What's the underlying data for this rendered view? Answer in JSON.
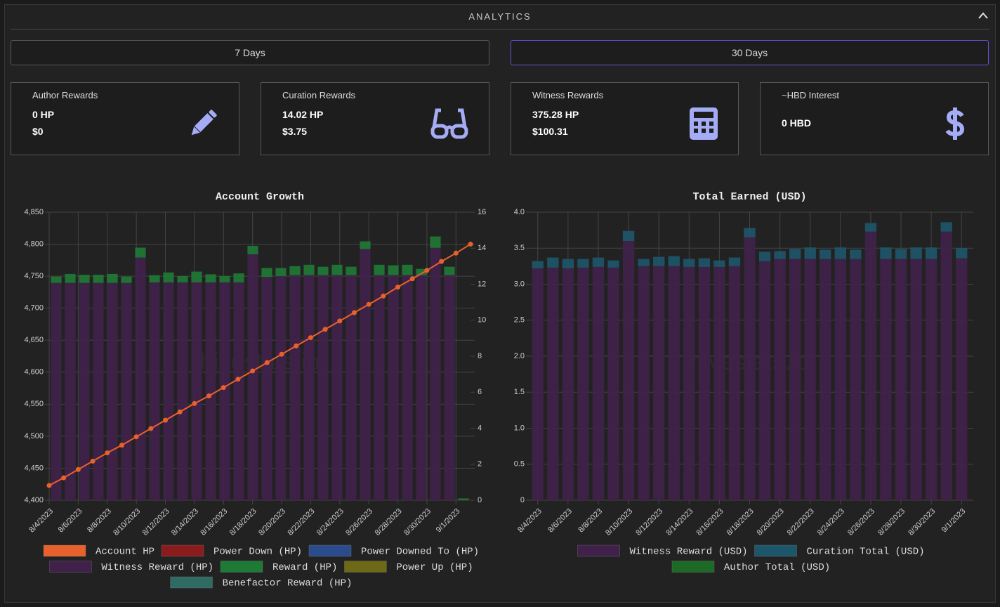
{
  "header": {
    "title": "ANALYTICS"
  },
  "tabs": [
    "7 Days",
    "30 Days"
  ],
  "cards": [
    {
      "title": "Author Rewards",
      "lines": [
        "0 HP",
        "$0"
      ]
    },
    {
      "title": "Curation Rewards",
      "lines": [
        "14.02 HP",
        "$3.75"
      ]
    },
    {
      "title": "Witness Rewards",
      "lines": [
        "375.28 HP",
        "$100.31"
      ]
    },
    {
      "title": "~HBD Interest",
      "lines": [
        "0 HBD"
      ]
    }
  ],
  "watermark": "hivestats.io",
  "chart_data": [
    {
      "type": "bar",
      "title": "Account Growth",
      "categories": [
        "8/4/2023",
        null,
        "8/6/2023",
        null,
        "8/8/2023",
        null,
        "8/10/2023",
        null,
        "8/12/2023",
        null,
        "8/14/2023",
        null,
        "8/16/2023",
        null,
        "8/18/2023",
        null,
        "8/20/2023",
        null,
        "8/22/2023",
        null,
        "8/24/2023",
        null,
        "8/26/2023",
        null,
        "8/28/2023",
        null,
        "8/30/2023",
        null,
        "9/1/2023",
        null
      ],
      "ylim": [
        4400,
        4850
      ],
      "yticks": [
        {
          "value": 4400,
          "label": "4,400"
        },
        {
          "value": 4450,
          "label": "4,450"
        },
        {
          "value": 4500,
          "label": "4,500"
        },
        {
          "value": 4550,
          "label": "4,550"
        },
        {
          "value": 4600,
          "label": "4,600"
        },
        {
          "value": 4650,
          "label": "4,650"
        },
        {
          "value": 4700,
          "label": "4,700"
        },
        {
          "value": 4750,
          "label": "4,750"
        },
        {
          "value": 4800,
          "label": "4,800"
        },
        {
          "value": 4850,
          "label": "4,850"
        }
      ],
      "y2lim": [
        0,
        16
      ],
      "y2ticks": [
        0,
        2,
        4,
        6,
        8,
        10,
        12,
        14,
        16
      ],
      "grid": true,
      "series": [
        {
          "name": "Account HP",
          "type": "line",
          "color": "#e8612c",
          "values": [
            4423,
            4435,
            4448,
            4461,
            4474,
            4486,
            4499,
            4512,
            4525,
            4538,
            4551,
            4563,
            4576,
            4589,
            4602,
            4615,
            4628,
            4641,
            4654,
            4667,
            4680,
            4693,
            4706,
            4719,
            4733,
            4746,
            4759,
            4773,
            4786,
            4800
          ]
        },
        {
          "name": "Power Down (HP)",
          "axis": "y2",
          "color": "#8a1c1c",
          "values": [
            0,
            0,
            0,
            0,
            0,
            0,
            0,
            0,
            0,
            0,
            0,
            0,
            0,
            0,
            0,
            0,
            0,
            0,
            0,
            0,
            0,
            0,
            0,
            0,
            0,
            0,
            0,
            0,
            0,
            0
          ]
        },
        {
          "name": "Power Downed To (HP)",
          "axis": "y2",
          "color": "#2b4c8c",
          "values": [
            0,
            0,
            0,
            0,
            0,
            0,
            0,
            0,
            0,
            0,
            0,
            0,
            0,
            0,
            0,
            0,
            0,
            0,
            0,
            0,
            0,
            0,
            0,
            0,
            0,
            0,
            0,
            0,
            0,
            0
          ]
        },
        {
          "name": "Witness Reward (HP)",
          "axis": "y2",
          "color": "#41214a",
          "values": [
            12.07,
            12.07,
            12.07,
            12.07,
            12.07,
            12.07,
            13.48,
            12.1,
            12.1,
            12.1,
            12.1,
            12.1,
            12.1,
            12.1,
            13.66,
            12.4,
            12.45,
            12.5,
            12.5,
            12.5,
            12.5,
            12.5,
            13.95,
            12.5,
            12.5,
            12.5,
            12.5,
            14.02,
            12.5,
            0
          ]
        },
        {
          "name": "Reward (HP)",
          "axis": "y2",
          "color": "#1f7a36",
          "values": [
            0.35,
            0.5,
            0.45,
            0.45,
            0.5,
            0.35,
            0.55,
            0.4,
            0.55,
            0.35,
            0.6,
            0.45,
            0.35,
            0.5,
            0.47,
            0.5,
            0.45,
            0.5,
            0.58,
            0.47,
            0.58,
            0.47,
            0.43,
            0.58,
            0.55,
            0.58,
            0.35,
            0.63,
            0.47,
            0.1
          ]
        },
        {
          "name": "Power Up (HP)",
          "axis": "y2",
          "color": "#6d6916",
          "values": [
            0,
            0,
            0,
            0,
            0,
            0,
            0,
            0,
            0,
            0,
            0,
            0,
            0,
            0,
            0,
            0,
            0,
            0,
            0,
            0,
            0,
            0,
            0,
            0,
            0,
            0,
            0,
            0,
            0,
            0
          ]
        },
        {
          "name": "Benefactor Reward (HP)",
          "axis": "y2",
          "color": "#2f6b62",
          "values": [
            0,
            0,
            0,
            0,
            0,
            0,
            0,
            0,
            0,
            0,
            0,
            0,
            0,
            0,
            0,
            0,
            0,
            0,
            0,
            0,
            0,
            0,
            0,
            0,
            0,
            0,
            0,
            0,
            0,
            0
          ]
        }
      ]
    },
    {
      "type": "bar",
      "title": "Total Earned (USD)",
      "categories": [
        "8/4/2023",
        null,
        "8/6/2023",
        null,
        "8/8/2023",
        null,
        "8/10/2023",
        null,
        "8/12/2023",
        null,
        "8/14/2023",
        null,
        "8/16/2023",
        null,
        "8/18/2023",
        null,
        "8/20/2023",
        null,
        "8/22/2023",
        null,
        "8/24/2023",
        null,
        "8/26/2023",
        null,
        "8/28/2023",
        null,
        "8/30/2023",
        null,
        "9/1/2023"
      ],
      "ylim": [
        0,
        4
      ],
      "yticks": [
        0,
        0.5,
        {
          "value": 1,
          "label": "1.0"
        },
        1.5,
        {
          "value": 2,
          "label": "2.0"
        },
        2.5,
        {
          "value": 3,
          "label": "3.0"
        },
        3.5,
        {
          "value": 4,
          "label": "4.0"
        }
      ],
      "grid": true,
      "series": [
        {
          "name": "Witness Reward (USD)",
          "color": "#41214a",
          "values": [
            3.22,
            3.23,
            3.22,
            3.23,
            3.24,
            3.23,
            3.6,
            3.25,
            3.25,
            3.25,
            3.24,
            3.24,
            3.24,
            3.25,
            3.65,
            3.32,
            3.35,
            3.35,
            3.35,
            3.35,
            3.35,
            3.35,
            3.73,
            3.35,
            3.35,
            3.35,
            3.35,
            3.73,
            3.36
          ]
        },
        {
          "name": "Curation Total (USD)",
          "color": "#1d566a",
          "values": [
            0.1,
            0.14,
            0.13,
            0.12,
            0.13,
            0.1,
            0.14,
            0.1,
            0.13,
            0.14,
            0.11,
            0.12,
            0.09,
            0.12,
            0.13,
            0.13,
            0.11,
            0.14,
            0.16,
            0.13,
            0.16,
            0.13,
            0.12,
            0.16,
            0.14,
            0.16,
            0.16,
            0.13,
            0.14
          ]
        },
        {
          "name": "Author Total (USD)",
          "color": "#1d6a27",
          "values": [
            0,
            0,
            0,
            0,
            0,
            0,
            0,
            0,
            0,
            0,
            0,
            0,
            0,
            0,
            0,
            0,
            0,
            0,
            0,
            0,
            0,
            0,
            0,
            0,
            0,
            0,
            0,
            0,
            0
          ]
        }
      ]
    }
  ]
}
